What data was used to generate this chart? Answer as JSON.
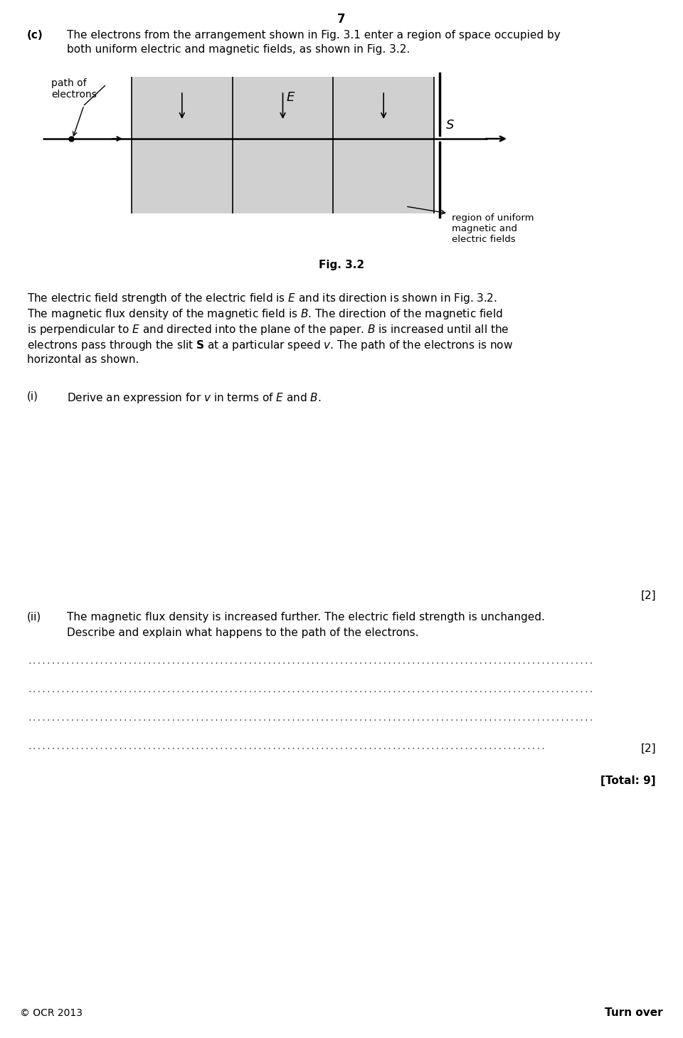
{
  "page_number": "7",
  "bg": "#ffffff",
  "fg": "#000000",
  "gray": "#d0d0d0",
  "fig_w": 9.6,
  "fig_h": 14.59,
  "dpi": 100,
  "part_c_label": "(c)",
  "part_c_line1": "The electrons from the arrangement shown in Fig. 3.1 enter a region of space occupied by",
  "part_c_line2": "both uniform electric and magnetic fields, as shown in Fig. 3.2.",
  "fig_caption": "Fig. 3.2",
  "para_lines": [
    "The electric field strength of the electric field is $E$ and its direction is shown in Fig. 3.2.",
    "The magnetic flux density of the magnetic field is $B$. The direction of the magnetic field",
    "is perpendicular to $E$ and directed into the plane of the paper. $B$ is increased until all the",
    "electrons pass through the slit $\\mathbf{S}$ at a particular speed $v$. The path of the electrons is now",
    "horizontal as shown."
  ],
  "part_i_label": "(i)",
  "part_i_text": "Derive an expression for $v$ in terms of $E$ and $B$.",
  "mark_i": "[2]",
  "part_ii_label": "(ii)",
  "part_ii_line1": "The magnetic flux density is increased further. The electric field strength is unchanged.",
  "part_ii_line2": "Describe and explain what happens to the path of the electrons.",
  "mark_ii": "[2]",
  "total": "[Total: 9]",
  "copyright": "© OCR 2013",
  "turn_over": "Turn over"
}
